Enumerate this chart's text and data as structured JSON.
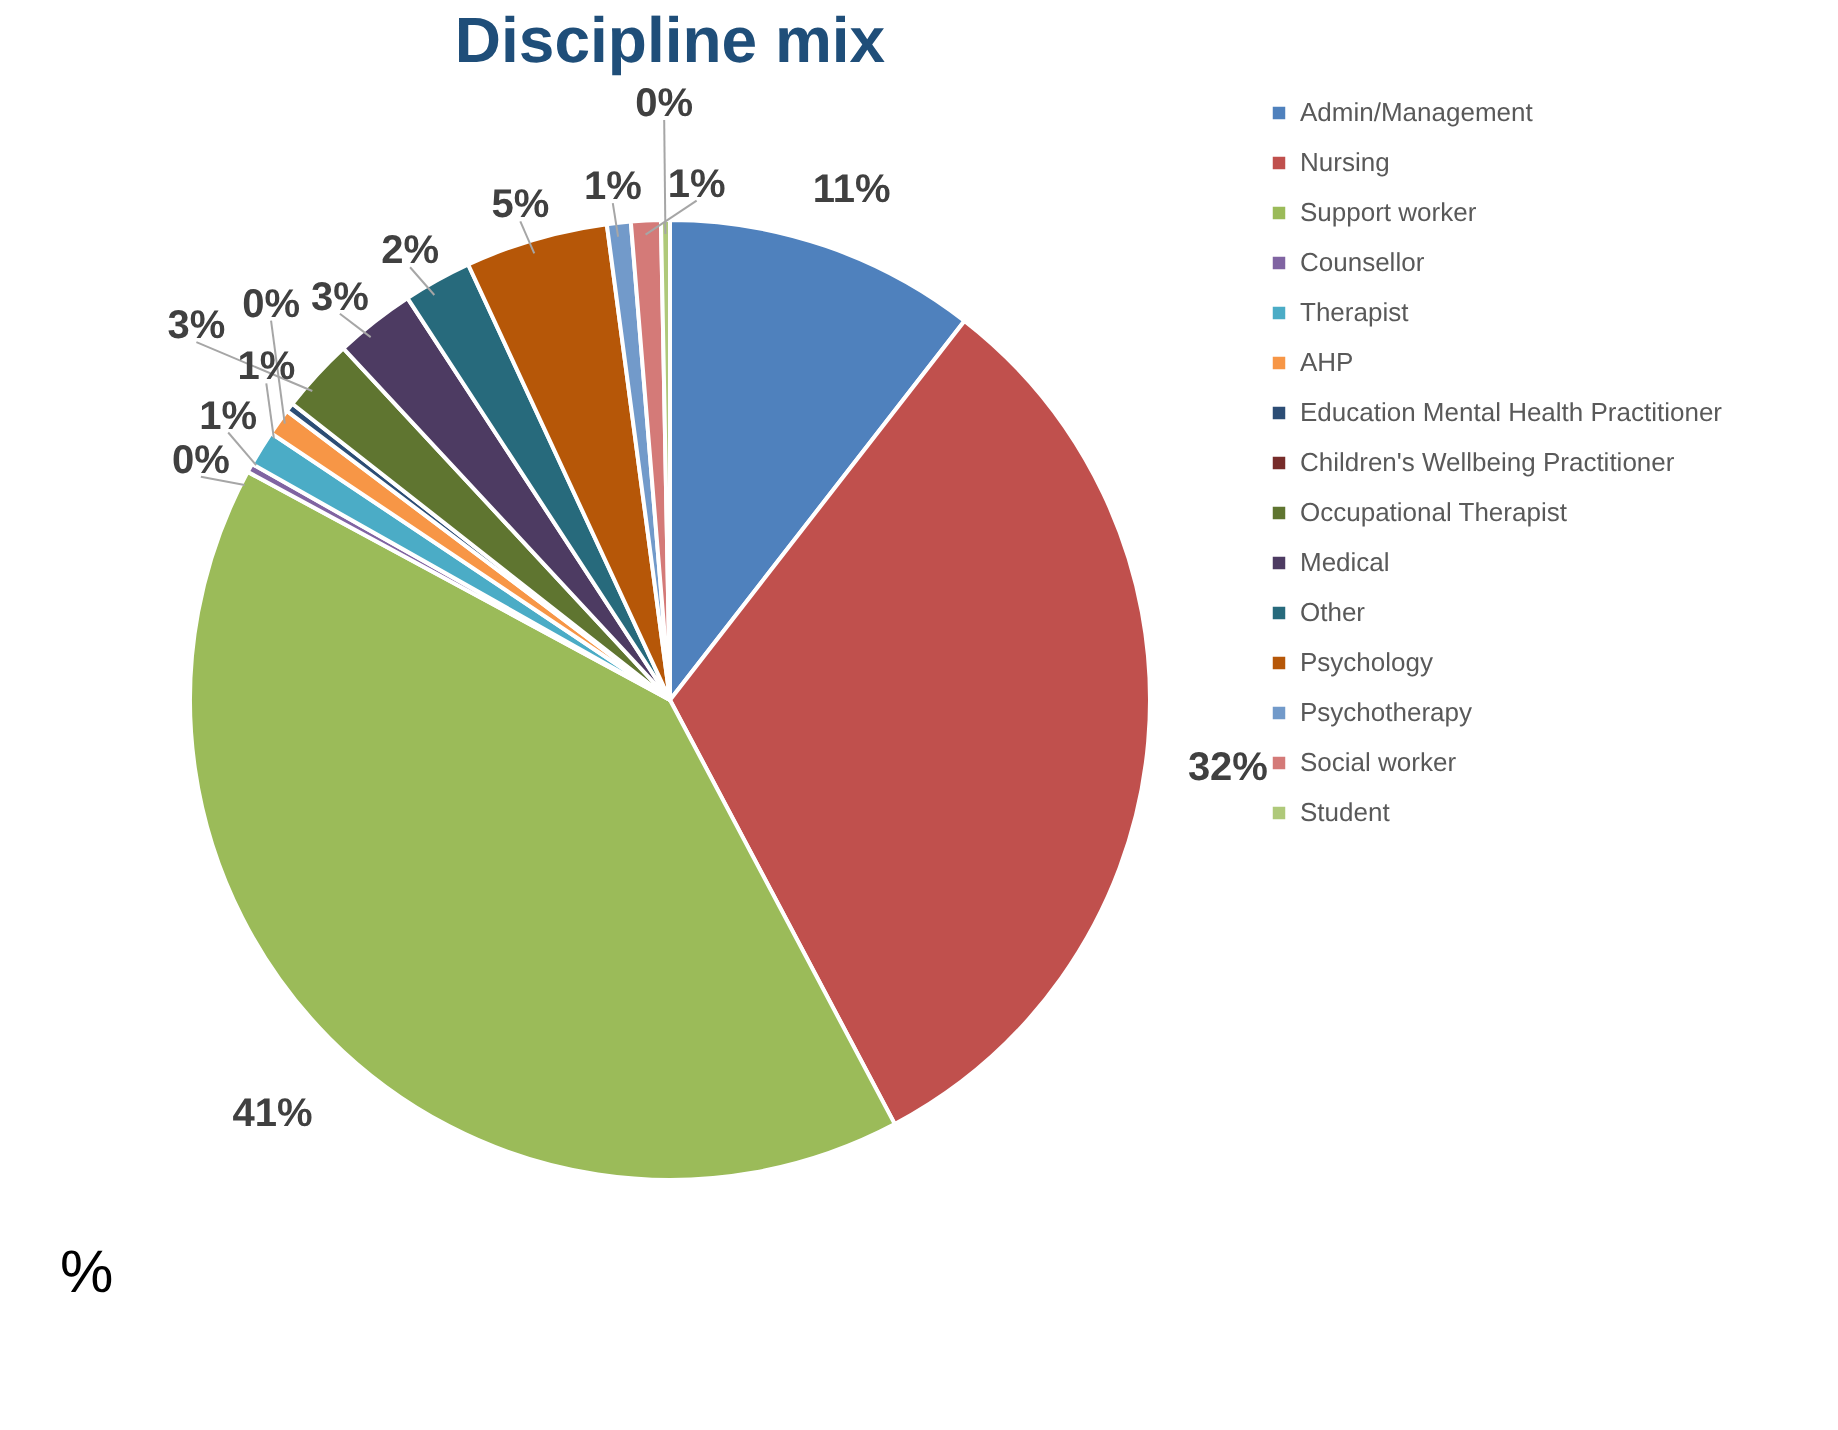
{
  "chart_data": {
    "type": "pie",
    "title": "Discipline mix",
    "categories": [
      "Admin/Management",
      "Nursing",
      "Support worker",
      "Counsellor",
      "Therapist",
      "AHP",
      "Education Mental Health Practitioner",
      "Children's Wellbeing Practitioner",
      "Occupational Therapist",
      "Medical",
      "Other",
      "Psychology",
      "Psychotherapy",
      "Social worker",
      "Student"
    ],
    "values": [
      10.5,
      31.7,
      40.6,
      0.3,
      1.2,
      0.9,
      0.3,
      null,
      2.5,
      2.7,
      2.3,
      4.8,
      0.8,
      1.0,
      0.3
    ],
    "colors": [
      "#4f81bd",
      "#c0504d",
      "#9bbb59",
      "#8064a2",
      "#4bacc6",
      "#f79646",
      "#2c4d75",
      "#772c2a",
      "#5f7530",
      "#4d3b62",
      "#276a7c",
      "#b65708",
      "#729aca",
      "#d47a78",
      "#afc97a"
    ],
    "value_labels": [
      "11%",
      "32%",
      "41%",
      "0%",
      "1%",
      "1%",
      "0%",
      null,
      "3%",
      "3%",
      "2%",
      "5%",
      "1%",
      "1%",
      "0%"
    ],
    "legend": "right",
    "annotations": [
      "%"
    ]
  }
}
